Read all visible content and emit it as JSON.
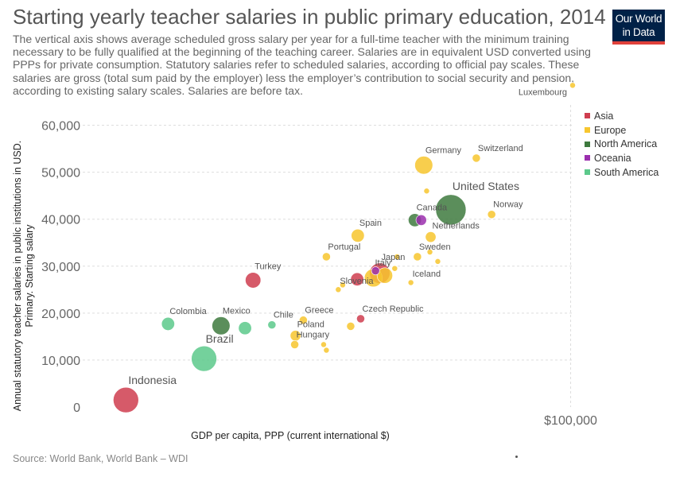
{
  "title": "Starting yearly teacher salaries in public primary education, 2014",
  "subtitle": "The vertical axis shows average scheduled gross salary per year for a full-time teacher with the minimum training necessary to be fully qualified at the beginning of the teaching career. Salaries are in equivalent USD converted using PPPs for private consumption. Statutory salaries refer to scheduled salaries, according to official pay scales. These salaries are gross (total sum paid by the employer) less the employer’s contribution to social security and pension, according to existing salary scales. Salaries are before tax.",
  "logo": {
    "line1": "Our World",
    "line2": "in Data",
    "bar_color": "#e0413b",
    "bg_color": "#002147"
  },
  "source": "Source: World Bank, World Bank – WDI",
  "chart_data": {
    "type": "scatter",
    "title": "Starting yearly teacher salaries in public primary education, 2014",
    "xlabel": "GDP per capita, PPP (current international $)",
    "ylabel": "Annual statutory teacher salaries in public institutions in USD. Primary. Starting salary",
    "x_scale": "log",
    "x_ticks": [
      100000
    ],
    "x_tick_labels": [
      "$100,000"
    ],
    "ylim": [
      0,
      65000
    ],
    "y_ticks": [
      0,
      10000,
      20000,
      30000,
      40000,
      50000,
      60000
    ],
    "y_tick_labels": [
      "0",
      "10,000",
      "20,000",
      "30,000",
      "40,000",
      "50,000",
      "60,000"
    ],
    "grid": "horizontal dashed",
    "legend_position": "top-right",
    "legend": [
      {
        "name": "Asia",
        "color": "#cf3d4f"
      },
      {
        "name": "Europe",
        "color": "#f7c62e"
      },
      {
        "name": "North America",
        "color": "#3e7a3e"
      },
      {
        "name": "Oceania",
        "color": "#9b2fae"
      },
      {
        "name": "South America",
        "color": "#5cc98b"
      }
    ],
    "points": [
      {
        "label": "Luxembourg",
        "region": "Europe",
        "x": 101000,
        "y": 68500,
        "size": 1
      },
      {
        "label": "Switzerland",
        "region": "Europe",
        "x": 62000,
        "y": 53000,
        "size": 2
      },
      {
        "label": "Germany",
        "region": "Europe",
        "x": 47500,
        "y": 51500,
        "size": 6
      },
      {
        "label": "",
        "region": "Europe",
        "x": 48200,
        "y": 46000,
        "size": 1
      },
      {
        "label": "United States",
        "region": "North America",
        "x": 54500,
        "y": 42000,
        "size": 11
      },
      {
        "label": "Norway",
        "region": "Europe",
        "x": 67000,
        "y": 41000,
        "size": 2
      },
      {
        "label": "Canada",
        "region": "North America",
        "x": 45400,
        "y": 39800,
        "size": 4
      },
      {
        "label": "",
        "region": "Oceania",
        "x": 46900,
        "y": 39800,
        "size": 3
      },
      {
        "label": "Netherlands",
        "region": "Europe",
        "x": 49200,
        "y": 36200,
        "size": 3
      },
      {
        "label": "Spain",
        "region": "Europe",
        "x": 34000,
        "y": 36500,
        "size": 4
      },
      {
        "label": "Sweden",
        "region": "Europe",
        "x": 46000,
        "y": 32000,
        "size": 2
      },
      {
        "label": "",
        "region": "Europe",
        "x": 49000,
        "y": 33000,
        "size": 1
      },
      {
        "label": "Portugal",
        "region": "Europe",
        "x": 29000,
        "y": 32000,
        "size": 2
      },
      {
        "label": "",
        "region": "Europe",
        "x": 41500,
        "y": 32000,
        "size": 1
      },
      {
        "label": "Japan",
        "region": "Asia",
        "x": 38000,
        "y": 28500,
        "size": 7
      },
      {
        "label": "Italy",
        "region": "Europe",
        "x": 36800,
        "y": 27500,
        "size": 6
      },
      {
        "label": "",
        "region": "Europe",
        "x": 39000,
        "y": 28000,
        "size": 5
      },
      {
        "label": "",
        "region": "Oceania",
        "x": 37200,
        "y": 29000,
        "size": 2
      },
      {
        "label": "",
        "region": "Europe",
        "x": 51000,
        "y": 31000,
        "size": 1
      },
      {
        "label": "",
        "region": "Europe",
        "x": 41000,
        "y": 29500,
        "size": 1
      },
      {
        "label": "Iceland",
        "region": "Europe",
        "x": 44500,
        "y": 26500,
        "size": 1
      },
      {
        "label": "Turkey",
        "region": "Asia",
        "x": 20000,
        "y": 27000,
        "size": 5
      },
      {
        "label": "",
        "region": "Asia",
        "x": 33900,
        "y": 27200,
        "size": 4
      },
      {
        "label": "",
        "region": "Europe",
        "x": 31500,
        "y": 26000,
        "size": 1
      },
      {
        "label": "Slovenia",
        "region": "Europe",
        "x": 30800,
        "y": 25000,
        "size": 1
      },
      {
        "label": "Chile",
        "region": "South America",
        "x": 22000,
        "y": 17500,
        "size": 2
      },
      {
        "label": "Greece",
        "region": "Europe",
        "x": 25800,
        "y": 18500,
        "size": 2
      },
      {
        "label": "Czech Republic",
        "region": "Asia",
        "x": 34500,
        "y": 18800,
        "size": 2
      },
      {
        "label": "",
        "region": "Europe",
        "x": 32800,
        "y": 17200,
        "size": 2
      },
      {
        "label": "Poland",
        "region": "Europe",
        "x": 24800,
        "y": 15200,
        "size": 3
      },
      {
        "label": "Hungary",
        "region": "Europe",
        "x": 24700,
        "y": 13300,
        "size": 2
      },
      {
        "label": "",
        "region": "Europe",
        "x": 28600,
        "y": 13300,
        "size": 1
      },
      {
        "label": "",
        "region": "Europe",
        "x": 29000,
        "y": 12100,
        "size": 1
      },
      {
        "label": "Colombia",
        "region": "South America",
        "x": 13000,
        "y": 17700,
        "size": 4
      },
      {
        "label": "Mexico",
        "region": "North America",
        "x": 17000,
        "y": 17300,
        "size": 6
      },
      {
        "label": "",
        "region": "South America",
        "x": 19200,
        "y": 16800,
        "size": 4
      },
      {
        "label": "Brazil",
        "region": "South America",
        "x": 15600,
        "y": 10300,
        "size": 9
      },
      {
        "label": "Indonesia",
        "region": "Asia",
        "x": 10500,
        "y": 1500,
        "size": 9
      }
    ]
  }
}
